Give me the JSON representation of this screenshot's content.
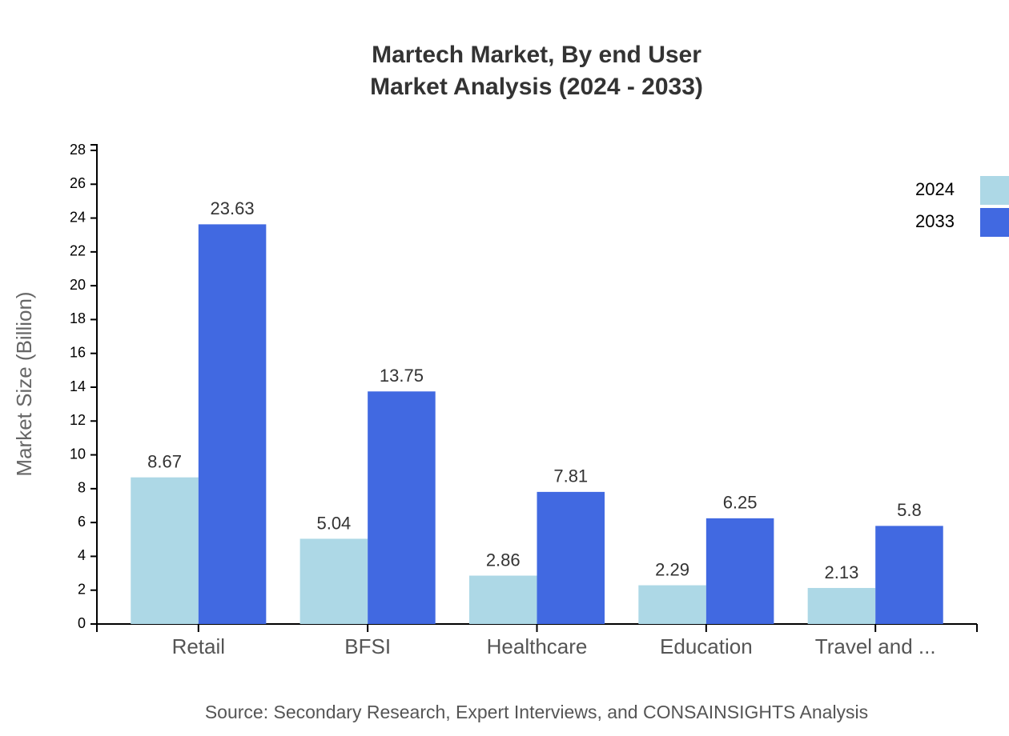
{
  "chart_data": {
    "type": "bar",
    "title": "Martech Market, By end User",
    "subtitle": "Market Analysis (2024 - 2033)",
    "y_label": "Market Size (Billion)",
    "source": "Source: Secondary Research, Expert Interviews, and CONSAINSIGHTS Analysis",
    "categories": [
      "Retail",
      "BFSI",
      "Healthcare",
      "Education",
      "Travel and ..."
    ],
    "series": [
      {
        "name": "2024",
        "color": "#add8e6",
        "values": [
          8.67,
          5.04,
          2.86,
          2.29,
          2.13
        ]
      },
      {
        "name": "2033",
        "color": "#4169e1",
        "values": [
          23.63,
          13.75,
          7.81,
          6.25,
          5.8
        ]
      }
    ],
    "ylim": [
      0,
      28
    ],
    "yticks": [
      0,
      2,
      4,
      6,
      8,
      10,
      12,
      14,
      16,
      18,
      20,
      22,
      24,
      26,
      28
    ]
  }
}
